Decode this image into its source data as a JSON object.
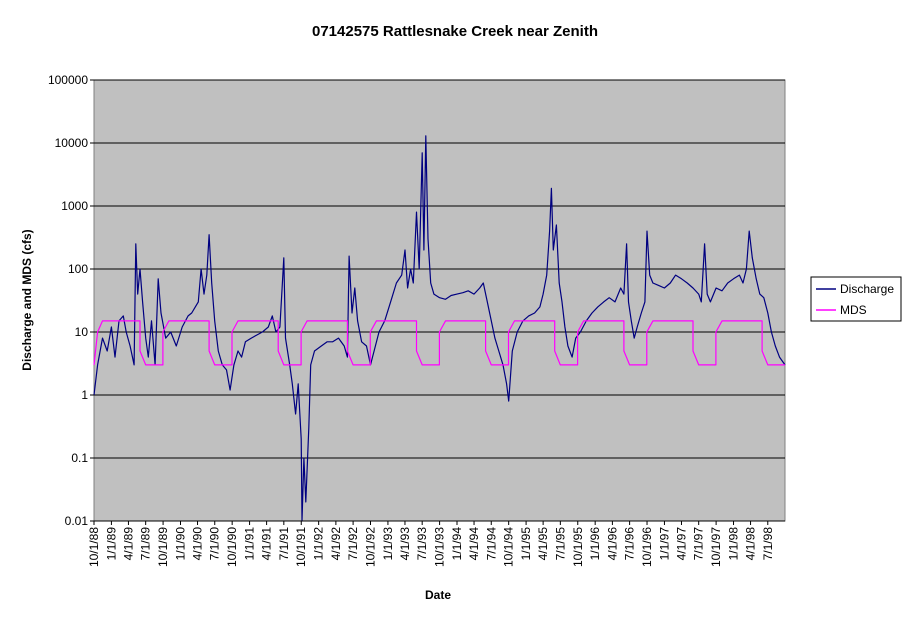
{
  "chart_data": {
    "type": "line",
    "title": "07142575 Rattlesnake Creek near Zenith",
    "xlabel": "Date",
    "ylabel": "Discharge and MDS (cfs)",
    "yscale": "log",
    "ylim": [
      0.01,
      100000
    ],
    "y_ticks": [
      "0.01",
      "0.1",
      "1",
      "10",
      "100",
      "1000",
      "10000",
      "100000"
    ],
    "xlim": [
      "1988-10-01",
      "1998-09-30"
    ],
    "x_ticks": [
      "10/1/88",
      "1/1/89",
      "4/1/89",
      "7/1/89",
      "10/1/89",
      "1/1/90",
      "4/1/90",
      "7/1/90",
      "10/1/90",
      "1/1/91",
      "4/1/91",
      "7/1/91",
      "10/1/91",
      "1/1/92",
      "4/1/92",
      "7/1/92",
      "10/1/92",
      "1/1/93",
      "4/1/93",
      "7/1/93",
      "10/1/93",
      "1/1/94",
      "4/1/94",
      "7/1/94",
      "10/1/94",
      "1/1/95",
      "4/1/95",
      "7/1/95",
      "10/1/95",
      "1/1/96",
      "4/1/96",
      "7/1/96",
      "10/1/96",
      "1/1/97",
      "4/1/97",
      "7/1/97",
      "10/1/97",
      "1/1/98",
      "4/1/98",
      "7/1/98"
    ],
    "grid": {
      "horizontal": true,
      "vertical": false
    },
    "plot_background": "#c0c0c0",
    "legend_position": "right",
    "series": [
      {
        "name": "Discharge",
        "color": "#000080",
        "points": [
          [
            "1988-10-01",
            1.0
          ],
          [
            "1988-10-20",
            3.0
          ],
          [
            "1988-11-15",
            8.0
          ],
          [
            "1988-12-10",
            5.0
          ],
          [
            "1989-01-01",
            12.0
          ],
          [
            "1989-01-20",
            4.0
          ],
          [
            "1989-02-10",
            15.0
          ],
          [
            "1989-03-05",
            18.0
          ],
          [
            "1989-03-20",
            10.0
          ],
          [
            "1989-04-10",
            6.0
          ],
          [
            "1989-05-01",
            3.0
          ],
          [
            "1989-05-10",
            250.0
          ],
          [
            "1989-05-20",
            40.0
          ],
          [
            "1989-06-01",
            100.0
          ],
          [
            "1989-06-15",
            30.0
          ],
          [
            "1989-07-01",
            8.0
          ],
          [
            "1989-07-15",
            4.0
          ],
          [
            "1989-08-01",
            15.0
          ],
          [
            "1989-08-20",
            3.0
          ],
          [
            "1989-09-05",
            70.0
          ],
          [
            "1989-09-20",
            20.0
          ],
          [
            "1989-10-15",
            8.0
          ],
          [
            "1989-11-10",
            10.0
          ],
          [
            "1989-12-10",
            6.0
          ],
          [
            "1990-01-10",
            12.0
          ],
          [
            "1990-02-10",
            18.0
          ],
          [
            "1990-03-01",
            20.0
          ],
          [
            "1990-03-20",
            25.0
          ],
          [
            "1990-04-05",
            30.0
          ],
          [
            "1990-04-20",
            100.0
          ],
          [
            "1990-05-05",
            40.0
          ],
          [
            "1990-05-20",
            80.0
          ],
          [
            "1990-06-01",
            350.0
          ],
          [
            "1990-06-15",
            60.0
          ],
          [
            "1990-07-01",
            15.0
          ],
          [
            "1990-07-20",
            5.0
          ],
          [
            "1990-08-10",
            3.0
          ],
          [
            "1990-09-01",
            2.5
          ],
          [
            "1990-09-20",
            1.2
          ],
          [
            "1990-10-10",
            3.0
          ],
          [
            "1990-11-01",
            5.0
          ],
          [
            "1990-11-20",
            4.0
          ],
          [
            "1990-12-10",
            7.0
          ],
          [
            "1991-01-10",
            8.0
          ],
          [
            "1991-02-10",
            9.0
          ],
          [
            "1991-03-10",
            10.0
          ],
          [
            "1991-04-10",
            12.0
          ],
          [
            "1991-05-01",
            18.0
          ],
          [
            "1991-05-20",
            10.0
          ],
          [
            "1991-06-10",
            12.0
          ],
          [
            "1991-07-01",
            150.0
          ],
          [
            "1991-07-10",
            8.0
          ],
          [
            "1991-08-01",
            3.0
          ],
          [
            "1991-08-15",
            1.5
          ],
          [
            "1991-09-01",
            0.5
          ],
          [
            "1991-09-15",
            1.5
          ],
          [
            "1991-10-01",
            0.2
          ],
          [
            "1991-10-05",
            0.01
          ],
          [
            "1991-10-15",
            0.1
          ],
          [
            "1991-10-25",
            0.02
          ],
          [
            "1991-11-10",
            0.3
          ],
          [
            "1991-11-20",
            3.0
          ],
          [
            "1991-12-10",
            5.0
          ],
          [
            "1992-01-15",
            6.0
          ],
          [
            "1992-02-15",
            7.0
          ],
          [
            "1992-03-15",
            7.0
          ],
          [
            "1992-04-15",
            8.0
          ],
          [
            "1992-05-15",
            6.0
          ],
          [
            "1992-06-01",
            4.0
          ],
          [
            "1992-06-10",
            160.0
          ],
          [
            "1992-06-25",
            20.0
          ],
          [
            "1992-07-10",
            50.0
          ],
          [
            "1992-07-25",
            15.0
          ],
          [
            "1992-08-15",
            7.0
          ],
          [
            "1992-09-10",
            6.0
          ],
          [
            "1992-10-01",
            3.0
          ],
          [
            "1992-10-20",
            5.0
          ],
          [
            "1992-11-15",
            10.0
          ],
          [
            "1992-12-15",
            15.0
          ],
          [
            "1993-01-15",
            30.0
          ],
          [
            "1993-02-15",
            60.0
          ],
          [
            "1993-03-15",
            80.0
          ],
          [
            "1993-04-01",
            200.0
          ],
          [
            "1993-04-15",
            50.0
          ],
          [
            "1993-05-01",
            100.0
          ],
          [
            "1993-05-15",
            60.0
          ],
          [
            "1993-06-01",
            800.0
          ],
          [
            "1993-06-15",
            100.0
          ],
          [
            "1993-07-01",
            7000.0
          ],
          [
            "1993-07-10",
            200.0
          ],
          [
            "1993-07-20",
            13000.0
          ],
          [
            "1993-08-01",
            300.0
          ],
          [
            "1993-08-15",
            60.0
          ],
          [
            "1993-09-01",
            40.0
          ],
          [
            "1993-10-01",
            35.0
          ],
          [
            "1993-11-01",
            33.0
          ],
          [
            "1993-12-01",
            38.0
          ],
          [
            "1994-01-01",
            40.0
          ],
          [
            "1994-02-01",
            42.0
          ],
          [
            "1994-03-01",
            45.0
          ],
          [
            "1994-04-01",
            40.0
          ],
          [
            "1994-05-01",
            50.0
          ],
          [
            "1994-05-20",
            60.0
          ],
          [
            "1994-06-10",
            30.0
          ],
          [
            "1994-07-01",
            15.0
          ],
          [
            "1994-07-20",
            8.0
          ],
          [
            "1994-08-10",
            5.0
          ],
          [
            "1994-09-01",
            3.0
          ],
          [
            "1994-09-20",
            1.5
          ],
          [
            "1994-10-01",
            0.8
          ],
          [
            "1994-10-20",
            5.0
          ],
          [
            "1994-11-15",
            10.0
          ],
          [
            "1994-12-15",
            15.0
          ],
          [
            "1995-01-15",
            18.0
          ],
          [
            "1995-02-15",
            20.0
          ],
          [
            "1995-03-15",
            25.0
          ],
          [
            "1995-04-01",
            40.0
          ],
          [
            "1995-04-20",
            80.0
          ],
          [
            "1995-05-05",
            400.0
          ],
          [
            "1995-05-15",
            1900.0
          ],
          [
            "1995-05-25",
            200.0
          ],
          [
            "1995-06-10",
            500.0
          ],
          [
            "1995-06-25",
            60.0
          ],
          [
            "1995-07-10",
            30.0
          ],
          [
            "1995-07-25",
            12.0
          ],
          [
            "1995-08-10",
            6.0
          ],
          [
            "1995-09-01",
            4.0
          ],
          [
            "1995-09-20",
            8.0
          ],
          [
            "1995-10-15",
            10.0
          ],
          [
            "1995-11-15",
            15.0
          ],
          [
            "1995-12-15",
            20.0
          ],
          [
            "1996-01-15",
            25.0
          ],
          [
            "1996-02-15",
            30.0
          ],
          [
            "1996-03-15",
            35.0
          ],
          [
            "1996-04-15",
            30.0
          ],
          [
            "1996-05-15",
            50.0
          ],
          [
            "1996-06-01",
            40.0
          ],
          [
            "1996-06-15",
            250.0
          ],
          [
            "1996-06-25",
            30.0
          ],
          [
            "1996-07-10",
            15.0
          ],
          [
            "1996-07-25",
            8.0
          ],
          [
            "1996-08-10",
            12.0
          ],
          [
            "1996-09-01",
            20.0
          ],
          [
            "1996-09-20",
            30.0
          ],
          [
            "1996-10-01",
            400.0
          ],
          [
            "1996-10-15",
            80.0
          ],
          [
            "1996-11-01",
            60.0
          ],
          [
            "1996-12-01",
            55.0
          ],
          [
            "1997-01-01",
            50.0
          ],
          [
            "1997-02-01",
            60.0
          ],
          [
            "1997-03-01",
            80.0
          ],
          [
            "1997-04-01",
            70.0
          ],
          [
            "1997-05-01",
            60.0
          ],
          [
            "1997-06-01",
            50.0
          ],
          [
            "1997-07-01",
            40.0
          ],
          [
            "1997-07-15",
            30.0
          ],
          [
            "1997-08-01",
            250.0
          ],
          [
            "1997-08-15",
            40.0
          ],
          [
            "1997-09-01",
            30.0
          ],
          [
            "1997-10-01",
            50.0
          ],
          [
            "1997-11-01",
            45.0
          ],
          [
            "1997-12-01",
            60.0
          ],
          [
            "1998-01-01",
            70.0
          ],
          [
            "1998-02-01",
            80.0
          ],
          [
            "1998-02-20",
            60.0
          ],
          [
            "1998-03-10",
            100.0
          ],
          [
            "1998-03-25",
            400.0
          ],
          [
            "1998-04-10",
            150.0
          ],
          [
            "1998-05-01",
            70.0
          ],
          [
            "1998-05-20",
            40.0
          ],
          [
            "1998-06-10",
            35.0
          ],
          [
            "1998-07-01",
            20.0
          ],
          [
            "1998-07-20",
            10.0
          ],
          [
            "1998-08-10",
            6.0
          ],
          [
            "1998-09-01",
            4.0
          ],
          [
            "1998-09-30",
            3.0
          ]
        ]
      },
      {
        "name": "MDS",
        "color": "#ff00ff",
        "points": [
          [
            "1988-10-01",
            3.0
          ],
          [
            "1988-10-20",
            10.0
          ],
          [
            "1988-11-15",
            15.0
          ],
          [
            "1989-06-01",
            15.0
          ],
          [
            "1989-06-01",
            5.0
          ],
          [
            "1989-07-01",
            3.0
          ],
          [
            "1989-09-30",
            3.0
          ],
          [
            "1989-09-30",
            10.0
          ],
          [
            "1989-11-01",
            15.0
          ],
          [
            "1990-06-01",
            15.0
          ],
          [
            "1990-06-01",
            5.0
          ],
          [
            "1990-07-01",
            3.0
          ],
          [
            "1990-09-30",
            3.0
          ],
          [
            "1990-09-30",
            10.0
          ],
          [
            "1990-11-01",
            15.0
          ],
          [
            "1991-06-01",
            15.0
          ],
          [
            "1991-06-01",
            5.0
          ],
          [
            "1991-07-01",
            3.0
          ],
          [
            "1991-09-30",
            3.0
          ],
          [
            "1991-09-30",
            10.0
          ],
          [
            "1991-11-01",
            15.0
          ],
          [
            "1992-06-01",
            15.0
          ],
          [
            "1992-06-01",
            5.0
          ],
          [
            "1992-07-01",
            3.0
          ],
          [
            "1992-09-30",
            3.0
          ],
          [
            "1992-09-30",
            10.0
          ],
          [
            "1992-11-01",
            15.0
          ],
          [
            "1993-06-01",
            15.0
          ],
          [
            "1993-06-01",
            5.0
          ],
          [
            "1993-07-01",
            3.0
          ],
          [
            "1993-09-30",
            3.0
          ],
          [
            "1993-09-30",
            10.0
          ],
          [
            "1993-11-01",
            15.0
          ],
          [
            "1994-06-01",
            15.0
          ],
          [
            "1994-06-01",
            5.0
          ],
          [
            "1994-07-01",
            3.0
          ],
          [
            "1994-09-30",
            3.0
          ],
          [
            "1994-09-30",
            10.0
          ],
          [
            "1994-11-01",
            15.0
          ],
          [
            "1995-06-01",
            15.0
          ],
          [
            "1995-06-01",
            5.0
          ],
          [
            "1995-07-01",
            3.0
          ],
          [
            "1995-09-30",
            3.0
          ],
          [
            "1995-09-30",
            10.0
          ],
          [
            "1995-11-01",
            15.0
          ],
          [
            "1996-06-01",
            15.0
          ],
          [
            "1996-06-01",
            5.0
          ],
          [
            "1996-07-01",
            3.0
          ],
          [
            "1996-09-30",
            3.0
          ],
          [
            "1996-09-30",
            10.0
          ],
          [
            "1996-11-01",
            15.0
          ],
          [
            "1997-06-01",
            15.0
          ],
          [
            "1997-06-01",
            5.0
          ],
          [
            "1997-07-01",
            3.0
          ],
          [
            "1997-09-30",
            3.0
          ],
          [
            "1997-09-30",
            10.0
          ],
          [
            "1997-11-01",
            15.0
          ],
          [
            "1998-06-01",
            15.0
          ],
          [
            "1998-06-01",
            5.0
          ],
          [
            "1998-07-01",
            3.0
          ],
          [
            "1998-09-30",
            3.0
          ]
        ]
      }
    ]
  }
}
